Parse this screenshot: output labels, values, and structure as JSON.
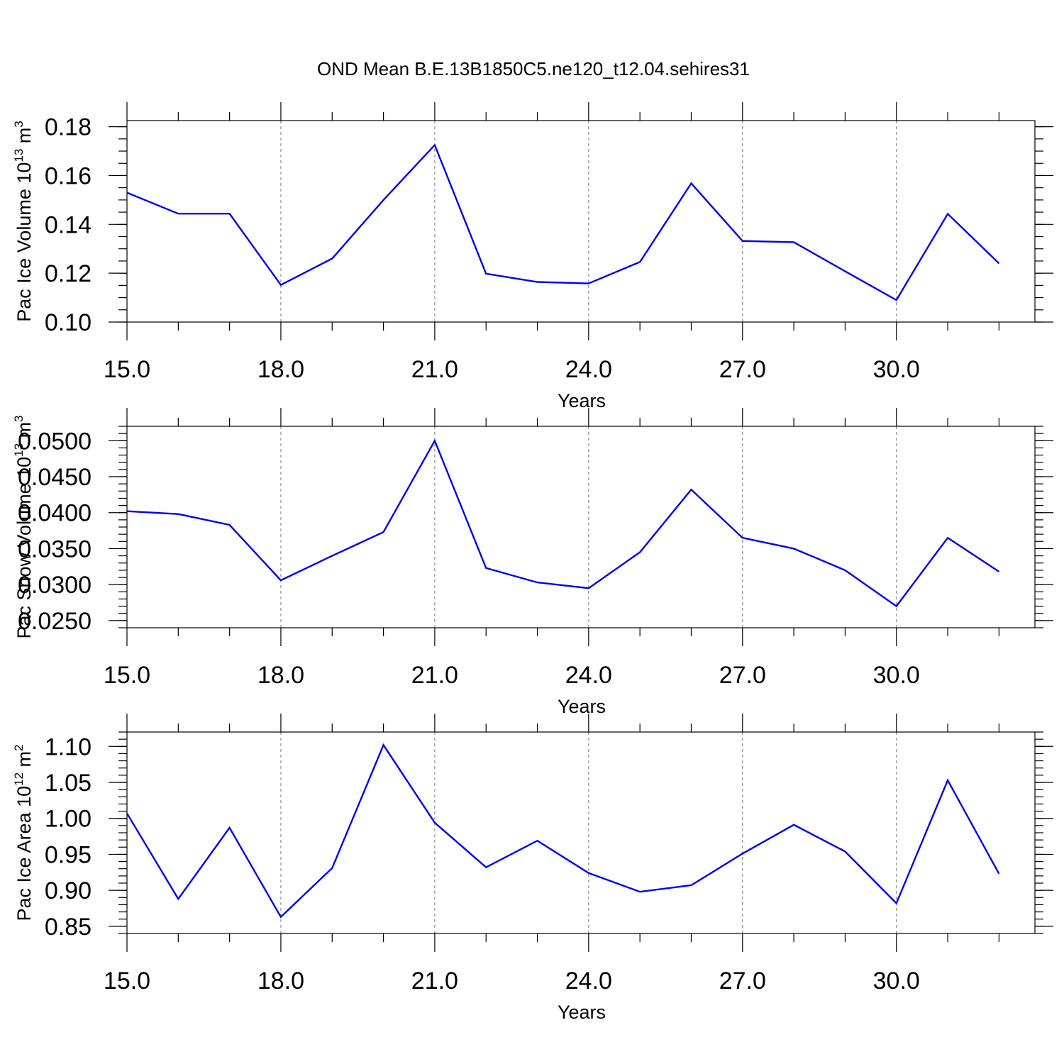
{
  "figure": {
    "title": "OND Mean B.E.13B1850C5.ne120_t12.04.sehires31"
  },
  "chart_data": [
    {
      "type": "line",
      "ylabel": "Pac Ice Volume 10",
      "ylabel_sup": "13",
      "ylabel_unit": " m",
      "ylabel_unit_sup": "3",
      "xlabel": "Years",
      "xlim": [
        15,
        32.7
      ],
      "ylim": [
        0.1,
        0.1825
      ],
      "x_ticks": [
        15,
        18,
        21,
        24,
        27,
        30
      ],
      "x_tick_labels": [
        "15.0",
        "18.0",
        "21.0",
        "24.0",
        "27.0",
        "30.0"
      ],
      "y_ticks": [
        0.1,
        0.12,
        0.14,
        0.16,
        0.18
      ],
      "y_tick_labels": [
        "0.10",
        "0.12",
        "0.14",
        "0.16",
        "0.18"
      ],
      "y_minor_step": 0.005,
      "grid_x": [
        18,
        21,
        24,
        27,
        30
      ],
      "series": [
        {
          "color": "#0000ee",
          "x": [
            15,
            16,
            17,
            18,
            19,
            20,
            21,
            22,
            23,
            24,
            25,
            26,
            27,
            28,
            29,
            30,
            31,
            32
          ],
          "values": [
            0.153,
            0.1444,
            0.1444,
            0.1152,
            0.126,
            0.15,
            0.1725,
            0.1198,
            0.1164,
            0.1158,
            0.1246,
            0.1568,
            0.1332,
            0.1327,
            0.1208,
            0.109,
            0.1443,
            0.124
          ]
        }
      ]
    },
    {
      "type": "line",
      "ylabel": "Pac Snow Volume 10",
      "ylabel_sup": "13",
      "ylabel_unit": " m",
      "ylabel_unit_sup": "3",
      "xlabel": "Years",
      "xlim": [
        15,
        32.7
      ],
      "ylim": [
        0.024,
        0.052
      ],
      "x_ticks": [
        15,
        18,
        21,
        24,
        27,
        30
      ],
      "x_tick_labels": [
        "15.0",
        "18.0",
        "21.0",
        "24.0",
        "27.0",
        "30.0"
      ],
      "y_ticks": [
        0.025,
        0.03,
        0.035,
        0.04,
        0.045,
        0.05
      ],
      "y_tick_labels": [
        "0.0250",
        "0.0300",
        "0.0350",
        "0.0400",
        "0.0450",
        "0.0500"
      ],
      "y_minor_step": 0.001,
      "grid_x": [
        18,
        21,
        24,
        27,
        30
      ],
      "series": [
        {
          "color": "#0000ee",
          "x": [
            15,
            16,
            17,
            18,
            19,
            20,
            21,
            22,
            23,
            24,
            25,
            26,
            27,
            28,
            29,
            30,
            31,
            32
          ],
          "values": [
            0.0402,
            0.0398,
            0.0383,
            0.0306,
            0.034,
            0.0373,
            0.05,
            0.0323,
            0.0303,
            0.0295,
            0.0345,
            0.0432,
            0.0365,
            0.035,
            0.032,
            0.027,
            0.0365,
            0.0318
          ]
        }
      ]
    },
    {
      "type": "line",
      "ylabel": "Pac Ice Area 10",
      "ylabel_sup": "12",
      "ylabel_unit": " m",
      "ylabel_unit_sup": "2",
      "xlabel": "Years",
      "xlim": [
        15,
        32.7
      ],
      "ylim": [
        0.84,
        1.12
      ],
      "x_ticks": [
        15,
        18,
        21,
        24,
        27,
        30
      ],
      "x_tick_labels": [
        "15.0",
        "18.0",
        "21.0",
        "24.0",
        "27.0",
        "30.0"
      ],
      "y_ticks": [
        0.85,
        0.9,
        0.95,
        1.0,
        1.05,
        1.1
      ],
      "y_tick_labels": [
        "0.85",
        "0.90",
        "0.95",
        "1.00",
        "1.05",
        "1.10"
      ],
      "y_minor_step": 0.01,
      "grid_x": [
        18,
        21,
        24,
        27,
        30
      ],
      "series": [
        {
          "color": "#0000ee",
          "x": [
            15,
            16,
            17,
            18,
            19,
            20,
            21,
            22,
            23,
            24,
            25,
            26,
            27,
            28,
            29,
            30,
            31,
            32
          ],
          "values": [
            1.007,
            0.888,
            0.987,
            0.863,
            0.931,
            1.102,
            0.994,
            0.932,
            0.969,
            0.924,
            0.898,
            0.907,
            0.951,
            0.991,
            0.954,
            0.882,
            1.053,
            0.923
          ]
        }
      ]
    }
  ]
}
